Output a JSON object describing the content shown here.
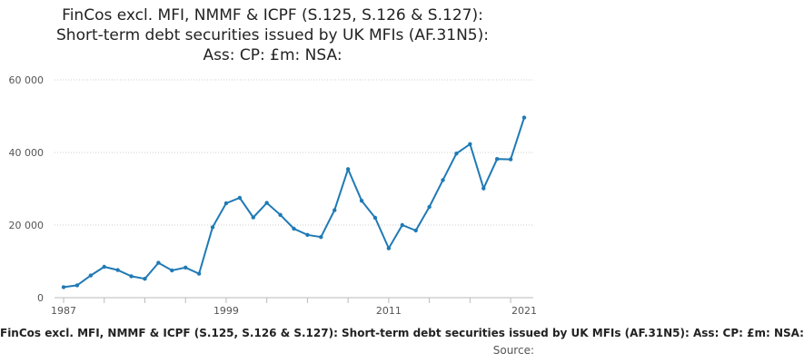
{
  "chart_data": {
    "type": "line",
    "title_lines": [
      "FinCos excl. MFI, NMMF & ICPF (S.125, S.126 & S.127):",
      "Short-term debt securities issued by UK MFIs (AF.31N5):",
      "Ass: CP: £m: NSA:"
    ],
    "xlabel": "FinCos excl. MFI, NMMF & ICPF (S.125, S.126 & S.127): Short-term debt securities issued by UK MFIs (AF.31N5): Ass: CP: £m: NSA:",
    "ylabel": "",
    "source_label": "Source:",
    "ylim": [
      0,
      60000
    ],
    "y_ticks": [
      0,
      20000,
      40000,
      60000
    ],
    "y_tick_labels": [
      "0",
      "20 000",
      "40 000",
      "60 000"
    ],
    "x_ticks": [
      1987,
      1999,
      2011,
      2021
    ],
    "x_tick_labels": [
      "1987",
      "1999",
      "2011",
      "2021"
    ],
    "xlim": [
      1987,
      2021
    ],
    "grid": "horizontal-dotted",
    "line_color": "#1f7ab5",
    "series": [
      {
        "x": [
          1987,
          1988,
          1989,
          1990,
          1991,
          1992,
          1993,
          1994,
          1995,
          1996,
          1997,
          1998,
          1999,
          2000,
          2001,
          2002,
          2003,
          2004,
          2005,
          2006,
          2007,
          2008,
          2009,
          2010,
          2011,
          2012,
          2013,
          2014,
          2015,
          2016,
          2017,
          2018,
          2019,
          2020,
          2021
        ],
        "values": [
          2900,
          3400,
          6100,
          8500,
          7600,
          5900,
          5200,
          9600,
          7500,
          8300,
          6600,
          19400,
          26000,
          27500,
          22100,
          26100,
          22800,
          19000,
          17300,
          16700,
          24100,
          35400,
          26700,
          22000,
          13600,
          20000,
          18500,
          25000,
          32400,
          39700,
          42300,
          30100,
          38200,
          38100,
          49600
        ]
      }
    ]
  }
}
